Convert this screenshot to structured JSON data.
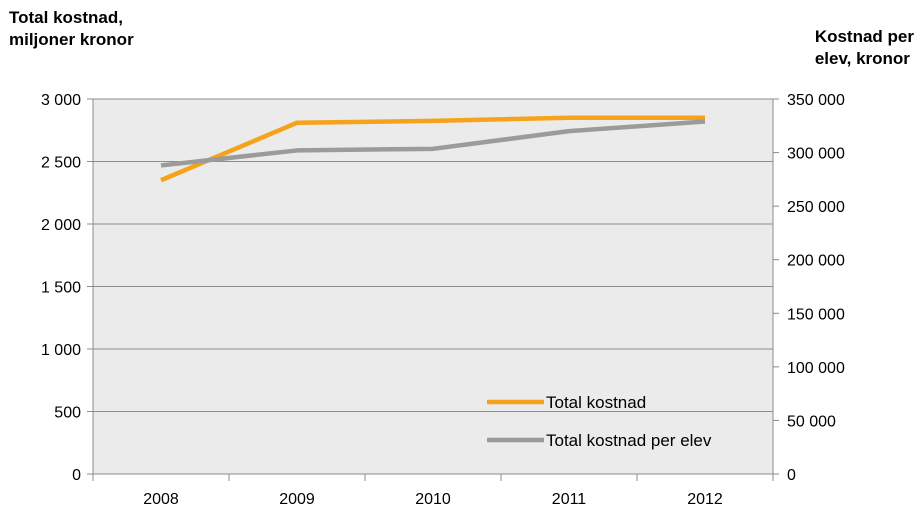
{
  "chart_data": {
    "type": "line",
    "categories": [
      "2008",
      "2009",
      "2010",
      "2011",
      "2012"
    ],
    "y_axis_left": {
      "label_lines": [
        "Total kostnad,",
        "miljoner kronor"
      ],
      "range": [
        0,
        3000
      ],
      "ticks": [
        0,
        500,
        1000,
        1500,
        2000,
        2500,
        3000
      ],
      "tick_labels": [
        "0",
        "500",
        "1 000",
        "1 500",
        "2 000",
        "2 500",
        "3 000"
      ]
    },
    "y_axis_right": {
      "label_lines": [
        "Kostnad per",
        "elev, kronor"
      ],
      "range": [
        0,
        350000
      ],
      "ticks": [
        0,
        50000,
        100000,
        150000,
        200000,
        250000,
        300000,
        350000
      ],
      "tick_labels": [
        "0",
        "50 000",
        "100 000",
        "150 000",
        "200 000",
        "250 000",
        "300 000",
        "350 000"
      ]
    },
    "series": [
      {
        "name": "Total kostnad",
        "axis": "left",
        "color": "#F5A31A",
        "values": [
          2350,
          2810,
          2825,
          2850,
          2850
        ]
      },
      {
        "name": "Total kostnad per elev",
        "axis": "right",
        "color": "#9B9B9B",
        "values": [
          288000,
          302000,
          303500,
          320000,
          329000
        ]
      }
    ],
    "grid": true,
    "plot_background": "#EBEBEB",
    "legend_position": "bottom-right"
  }
}
